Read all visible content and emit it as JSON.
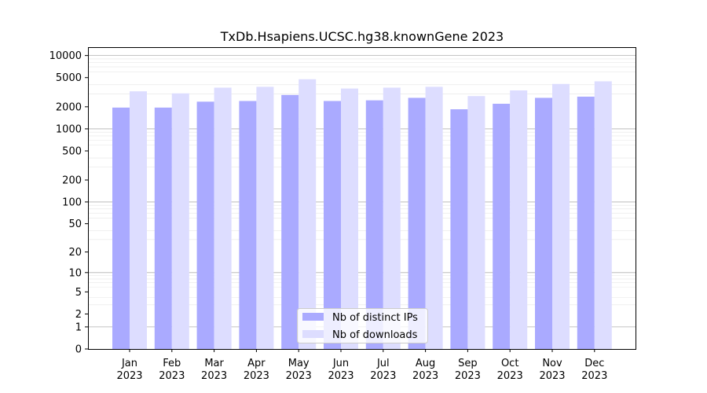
{
  "chart_data": {
    "type": "bar",
    "title": "TxDb.Hsapiens.UCSC.hg38.knownGene 2023",
    "xlabel": "",
    "ylabel": "",
    "y_scale": "symlog",
    "ylim": [
      0,
      13000
    ],
    "y_ticks": [
      0,
      1,
      2,
      5,
      10,
      20,
      50,
      100,
      200,
      500,
      1000,
      2000,
      5000,
      10000
    ],
    "grid": "horizontal",
    "legend_position": "bottom-center",
    "categories": [
      [
        "Jan",
        "2023"
      ],
      [
        "Feb",
        "2023"
      ],
      [
        "Mar",
        "2023"
      ],
      [
        "Apr",
        "2023"
      ],
      [
        "May",
        "2023"
      ],
      [
        "Jun",
        "2023"
      ],
      [
        "Jul",
        "2023"
      ],
      [
        "Aug",
        "2023"
      ],
      [
        "Sep",
        "2023"
      ],
      [
        "Oct",
        "2023"
      ],
      [
        "Nov",
        "2023"
      ],
      [
        "Dec",
        "2023"
      ]
    ],
    "series": [
      {
        "name": "Nb of distinct IPs",
        "color": "#aaaaff",
        "values": [
          1950,
          1950,
          2350,
          2400,
          2900,
          2400,
          2450,
          2650,
          1850,
          2200,
          2650,
          2750
        ]
      },
      {
        "name": "Nb of downloads",
        "color": "#ddddff",
        "values": [
          3250,
          3050,
          3650,
          3750,
          4750,
          3550,
          3650,
          3750,
          2800,
          3350,
          4100,
          4450
        ]
      }
    ]
  }
}
